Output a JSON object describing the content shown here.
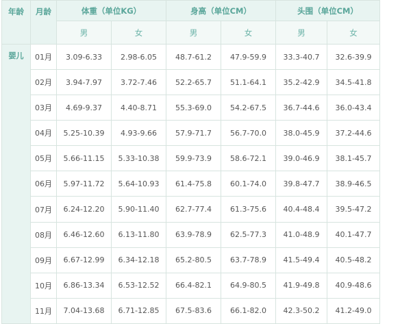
{
  "header": {
    "age_label": "年龄",
    "month_label": "月龄",
    "weight_label": "体重（单位KG）",
    "height_label": "身高（单位CM）",
    "head_label": "头围（单位CM）",
    "male": "男",
    "female": "女"
  },
  "group_label": "婴儿",
  "rows": [
    {
      "month": "01月",
      "w_m": "3.09-6.33",
      "w_f": "2.98-6.05",
      "h_m": "48.7-61.2",
      "h_f": "47.9-59.9",
      "c_m": "33.3-40.7",
      "c_f": "32.6-39.9"
    },
    {
      "month": "02月",
      "w_m": "3.94-7.97",
      "w_f": "3.72-7.46",
      "h_m": "52.2-65.7",
      "h_f": "51.1-64.1",
      "c_m": "35.2-42.9",
      "c_f": "34.5-41.8"
    },
    {
      "month": "03月",
      "w_m": "4.69-9.37",
      "w_f": "4.40-8.71",
      "h_m": "55.3-69.0",
      "h_f": "54.2-67.5",
      "c_m": "36.7-44.6",
      "c_f": "36.0-43.4"
    },
    {
      "month": "04月",
      "w_m": "5.25-10.39",
      "w_f": "4.93-9.66",
      "h_m": "57.9-71.7",
      "h_f": "56.7-70.0",
      "c_m": "38.0-45.9",
      "c_f": "37.2-44.6"
    },
    {
      "month": "05月",
      "w_m": "5.66-11.15",
      "w_f": "5.33-10.38",
      "h_m": "59.9-73.9",
      "h_f": "58.6-72.1",
      "c_m": "39.0-46.9",
      "c_f": "38.1-45.7"
    },
    {
      "month": "06月",
      "w_m": "5.97-11.72",
      "w_f": "5.64-10.93",
      "h_m": "61.4-75.8",
      "h_f": "60.1-74.0",
      "c_m": "39.8-47.7",
      "c_f": "38.9-46.5"
    },
    {
      "month": "07月",
      "w_m": "6.24-12.20",
      "w_f": "5.90-11.40",
      "h_m": "62.7-77.4",
      "h_f": "61.3-75.6",
      "c_m": "40.4-48.4",
      "c_f": "39.5-47.2"
    },
    {
      "month": "08月",
      "w_m": "6.46-12.60",
      "w_f": "6.13-11.80",
      "h_m": "63.9-78.9",
      "h_f": "62.5-77.3",
      "c_m": "41.0-48.9",
      "c_f": "40.1-47.7"
    },
    {
      "month": "09月",
      "w_m": "6.67-12.99",
      "w_f": "6.34-12.18",
      "h_m": "65.2-80.5",
      "h_f": "63.7-78.9",
      "c_m": "41.5-49.4",
      "c_f": "40.5-48.2"
    },
    {
      "month": "10月",
      "w_m": "6.86-13.34",
      "w_f": "6.53-12.52",
      "h_m": "66.4-82.1",
      "h_f": "64.9-80.5",
      "c_m": "41.9-49.8",
      "c_f": "40.9-48.6"
    },
    {
      "month": "11月",
      "w_m": "7.04-13.68",
      "w_f": "6.71-12.85",
      "h_m": "67.5-83.6",
      "h_f": "66.1-82.0",
      "c_m": "42.3-50.2",
      "c_f": "41.2-49.0"
    }
  ]
}
